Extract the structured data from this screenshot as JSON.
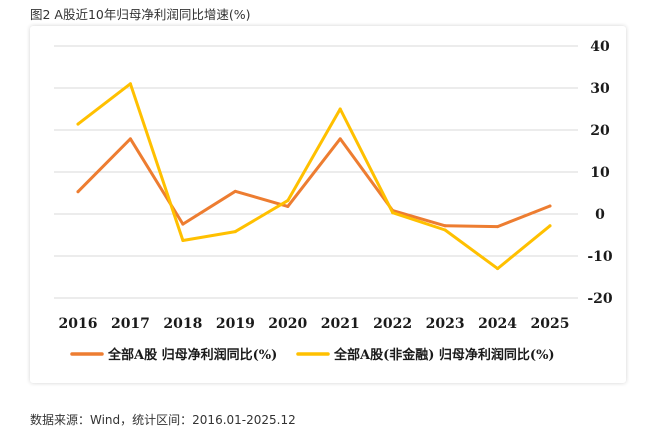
{
  "figure_title": "图2 A股近10年归母净利润同比增速(%)",
  "source_note": "数据来源：Wind，统计区间：2016.01-2025.12",
  "chart_data": {
    "type": "line",
    "x": [
      "2016",
      "2017",
      "2018",
      "2019",
      "2020",
      "2021",
      "2022",
      "2023",
      "2024",
      "2025"
    ],
    "ylim": [
      -20,
      40
    ],
    "yticks": [
      "40",
      "30",
      "20",
      "10",
      "0",
      "-10",
      "-20"
    ],
    "grid": true,
    "legend_position": "bottom",
    "series": [
      {
        "name": "全部A股 归母净利润同比(%)",
        "color": "#ED7D31",
        "values": [
          5.3,
          17.9,
          -2.4,
          5.4,
          1.8,
          17.9,
          0.8,
          -2.8,
          -3.0,
          1.9
        ]
      },
      {
        "name": "全部A股(非金融) 归母净利润同比(%)",
        "color": "#FFC000",
        "values": [
          21.4,
          31.0,
          -6.3,
          -4.2,
          3.2,
          25.0,
          0.3,
          -3.8,
          -13.0,
          -2.8
        ]
      }
    ]
  }
}
